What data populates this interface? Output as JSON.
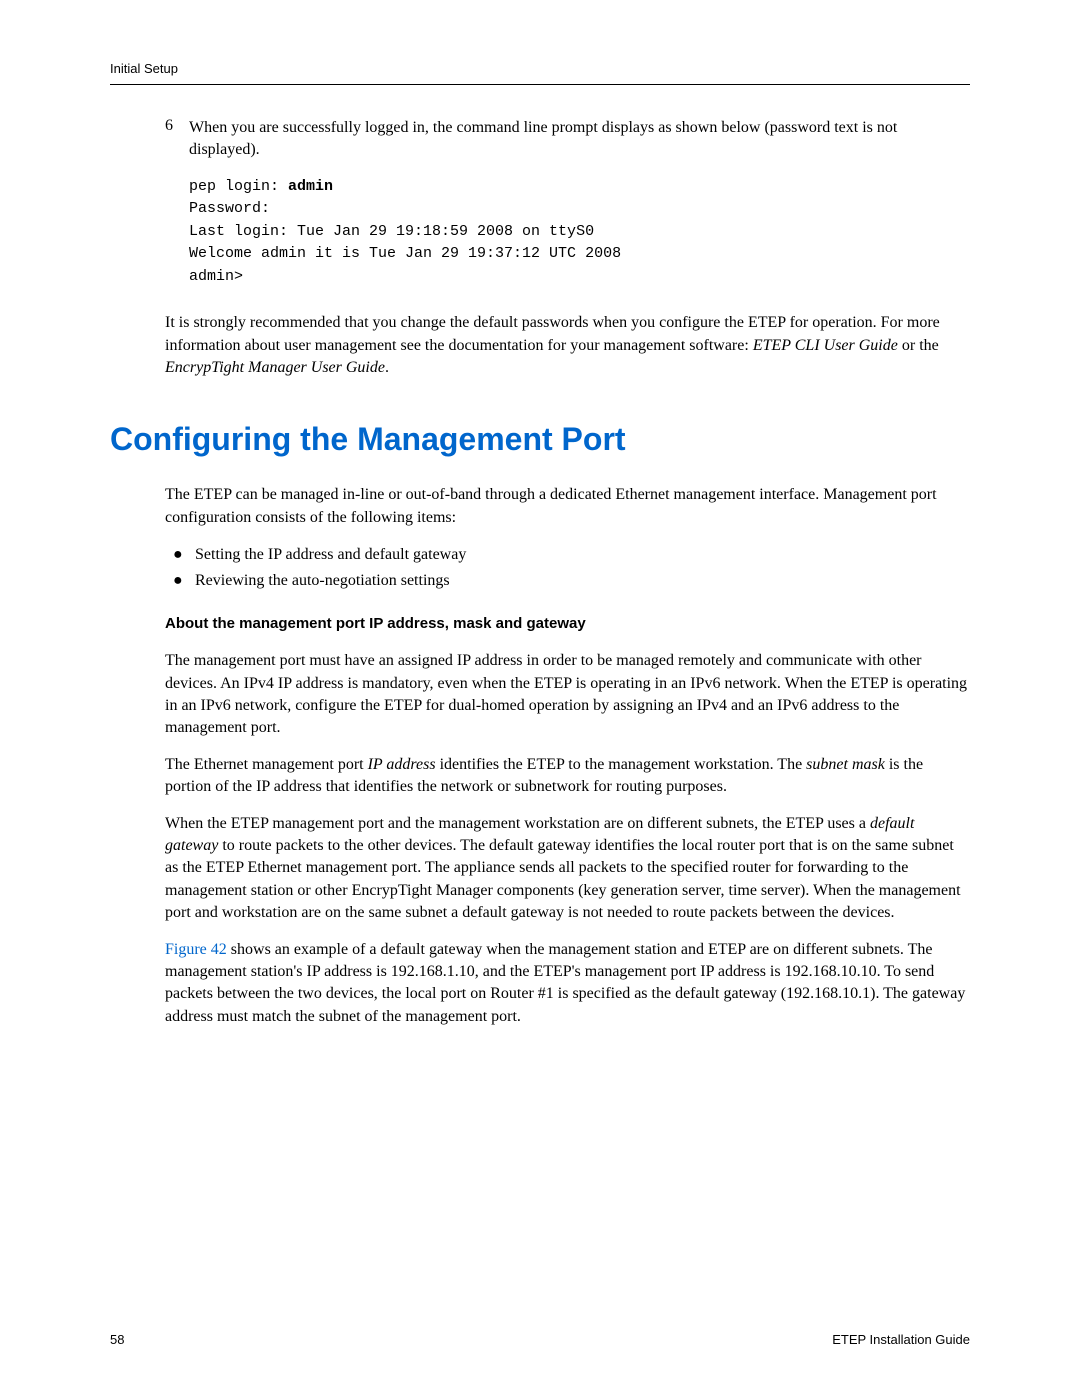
{
  "header": {
    "section_name": "Initial Setup"
  },
  "step": {
    "number": "6",
    "text": "When you are successfully logged in, the command line prompt displays as shown below (password text is not displayed)."
  },
  "code": {
    "line1_prefix": "pep login: ",
    "line1_bold": "admin",
    "line2": "Password:",
    "line3": "Last login: Tue Jan 29 19:18:59 2008 on ttyS0",
    "line4": "Welcome admin it is Tue Jan 29 19:37:12 UTC 2008",
    "line5": "admin>"
  },
  "recommend": {
    "text_prefix": "It is strongly recommended that you change the default passwords when you configure the ETEP for operation. For more information about user management see the documentation for your management software: ",
    "doc1": "ETEP CLI User Guide",
    "text_mid": " or the ",
    "doc2": "EncrypTight Manager User Guide",
    "text_suffix": "."
  },
  "section": {
    "title": "Configuring the Management Port",
    "intro": "The ETEP can be managed in-line or out-of-band through a dedicated Ethernet management interface. Management port configuration consists of the following items:",
    "bullets": {
      "item1": "Setting the IP address and default gateway",
      "item2": "Reviewing the auto-negotiation settings"
    },
    "subsection_title": "About the management port IP address, mask and gateway",
    "para1": "The management port must have an assigned IP address in order to be managed remotely and communicate with other devices. An IPv4 IP address is mandatory, even when the ETEP is operating in an IPv6 network. When the ETEP is operating in an IPv6 network, configure the ETEP for dual-homed operation by assigning an IPv4 and an IPv6 address to the management port.",
    "para2_prefix": "The Ethernet management port ",
    "para2_italic1": "IP address",
    "para2_mid1": " identifies the ETEP to the management workstation. The ",
    "para2_italic2": "subnet mask",
    "para2_suffix": " is the portion of the IP address that identifies the network or subnetwork for routing purposes.",
    "para3_prefix": "When the ETEP management port and the management workstation are on different subnets, the ETEP uses a ",
    "para3_italic": "default gateway",
    "para3_suffix": " to route packets to the other devices. The default gateway identifies the local router port that is on the same subnet as the ETEP Ethernet management port. The appliance sends all packets to the specified router for forwarding to the management station or other EncrypTight Manager components (key generation server, time server). When the management port and workstation are on the same subnet a default gateway is not needed to route packets between the devices.",
    "para4_link": "Figure 42",
    "para4_suffix": " shows an example of a default gateway when the management station and ETEP are on different subnets. The management station's IP address is 192.168.1.10, and the ETEP's management port IP address is 192.168.10.10. To send packets between the two devices, the local port on Router #1 is specified as the default gateway (192.168.10.1). The gateway address must match the subnet of the management port."
  },
  "footer": {
    "page": "58",
    "guide": "ETEP Installation Guide"
  },
  "colors": {
    "heading_blue": "#0066cc",
    "text_black": "#000000",
    "background": "#ffffff"
  }
}
